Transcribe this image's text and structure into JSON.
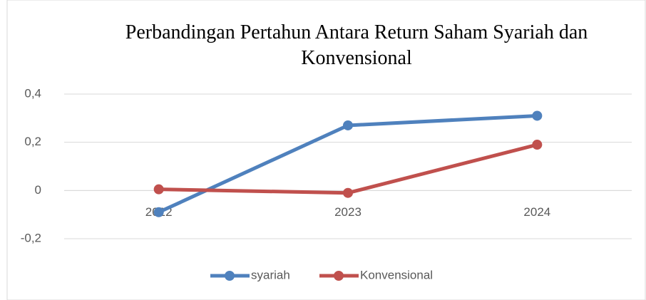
{
  "chart_data": {
    "type": "line",
    "title": "Perbandingan Pertahun Antara Return Saham Syariah dan Konvensional",
    "categories": [
      "2022",
      "2023",
      "2024"
    ],
    "series": [
      {
        "name": "syariah",
        "color": "#4f81bd",
        "values": [
          -0.09,
          0.27,
          0.31
        ]
      },
      {
        "name": "Konvensional",
        "color": "#c0504d",
        "values": [
          0.005,
          -0.01,
          0.19
        ]
      }
    ],
    "ylim": [
      -0.2,
      0.4
    ],
    "yticks": [
      {
        "value": -0.2,
        "label": "-0,2"
      },
      0,
      {
        "value": 0.2,
        "label": "0,2"
      },
      {
        "value": 0.4,
        "label": "0,4"
      }
    ],
    "grid": true,
    "legend": "bottom"
  }
}
